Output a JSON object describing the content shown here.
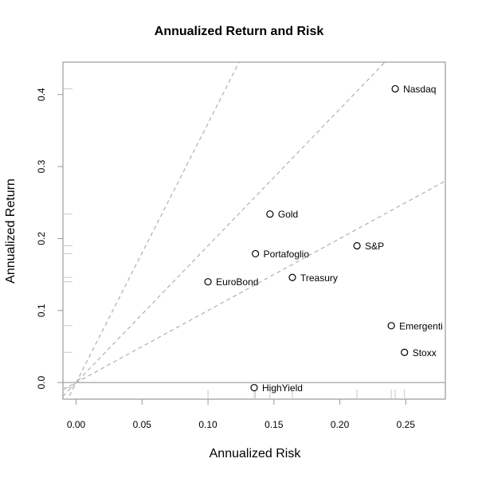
{
  "chart_data": {
    "type": "scatter",
    "title": "Annualized Return and Risk",
    "xlabel": "Annualized Risk",
    "ylabel": "Annualized Return",
    "xlim": [
      -0.01,
      0.28
    ],
    "ylim": [
      -0.023,
      0.445
    ],
    "x_ticks": [
      0.0,
      0.05,
      0.1,
      0.15,
      0.2,
      0.25
    ],
    "x_tick_labels": [
      "0.00",
      "0.05",
      "0.10",
      "0.15",
      "0.20",
      "0.25"
    ],
    "y_ticks": [
      0.0,
      0.1,
      0.2,
      0.3,
      0.4
    ],
    "y_tick_labels": [
      "0.0",
      "0.1",
      "0.2",
      "0.3",
      "0.4"
    ],
    "grid": false,
    "legend": "none",
    "reference_lines": {
      "horizontal_at_y": 0,
      "slopes_through_origin": [
        1.0,
        1.9,
        3.6
      ]
    },
    "points": [
      {
        "label": "Nasdaq",
        "x": 0.242,
        "y": 0.408
      },
      {
        "label": "Gold",
        "x": 0.147,
        "y": 0.234
      },
      {
        "label": "S&P",
        "x": 0.213,
        "y": 0.19
      },
      {
        "label": "Portafoglio",
        "x": 0.136,
        "y": 0.179
      },
      {
        "label": "Treasury",
        "x": 0.164,
        "y": 0.146
      },
      {
        "label": "EuroBond",
        "x": 0.1,
        "y": 0.14
      },
      {
        "label": "Emergenti",
        "x": 0.239,
        "y": 0.079
      },
      {
        "label": "Stoxx",
        "x": 0.249,
        "y": 0.042
      },
      {
        "label": "HighYield",
        "x": 0.135,
        "y": -0.007
      }
    ]
  }
}
